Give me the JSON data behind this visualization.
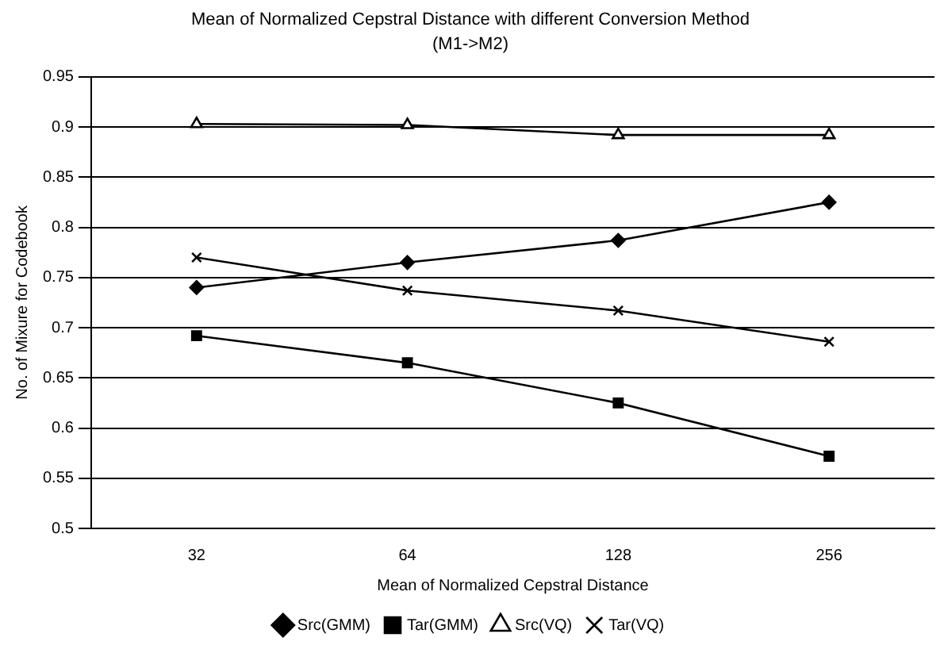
{
  "chart_data": {
    "type": "line",
    "title": "Mean of Normalized Cepstral Distance with different Conversion Method",
    "subtitle": "(M1->M2)",
    "xlabel": "Mean of Normalized Cepstral Distance",
    "ylabel": "No. of Mixure for Codebook",
    "categories": [
      "32",
      "64",
      "128",
      "256"
    ],
    "series": [
      {
        "name": "Src(GMM)",
        "color": "#000000",
        "marker": "diamond",
        "values": [
          0.74,
          0.765,
          0.787,
          0.825
        ]
      },
      {
        "name": "Tar(GMM)",
        "color": "#000000",
        "marker": "square",
        "values": [
          0.692,
          0.665,
          0.625,
          0.572
        ]
      },
      {
        "name": "Src(VQ)",
        "color": "#000000",
        "marker": "triangle",
        "values": [
          0.903,
          0.902,
          0.892,
          0.892
        ]
      },
      {
        "name": "Tar(VQ)",
        "color": "#000000",
        "marker": "cross",
        "values": [
          0.77,
          0.737,
          0.717,
          0.686
        ]
      }
    ],
    "ylim": [
      0.5,
      0.95
    ],
    "yticks": [
      0.5,
      0.55,
      0.6,
      0.65,
      0.7,
      0.75,
      0.8,
      0.85,
      0.9,
      0.95
    ],
    "grid": "y",
    "legend": "bottom",
    "line_style": "solid"
  }
}
